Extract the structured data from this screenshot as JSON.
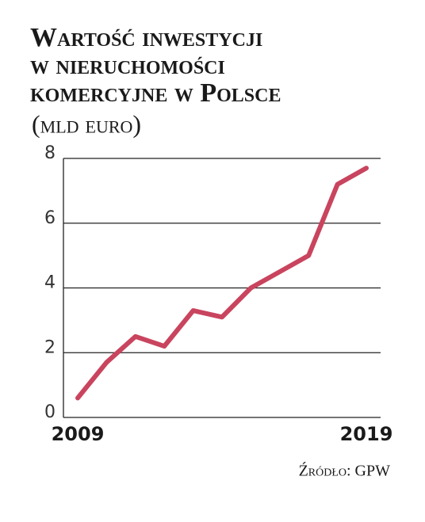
{
  "chart_data": {
    "type": "line",
    "title": [
      "Wartość inwestycji",
      "w nieruchomości",
      "komercyjne w Polsce"
    ],
    "subtitle": "(mld euro)",
    "source": "Źródło: GPW",
    "x": [
      2009,
      2010,
      2011,
      2012,
      2013,
      2014,
      2015,
      2016,
      2017,
      2018,
      2019
    ],
    "series": [
      {
        "name": "Wartość inwestycji",
        "color": "#c9445e",
        "values": [
          0.6,
          1.7,
          2.5,
          2.2,
          3.3,
          3.1,
          4.0,
          4.5,
          5.0,
          7.2,
          7.7
        ]
      }
    ],
    "xlim": [
      2009,
      2019
    ],
    "xticks": [
      2009,
      2019
    ],
    "ylim": [
      0,
      8
    ],
    "yticks": [
      0,
      2,
      4,
      6,
      8
    ],
    "grid": true
  }
}
